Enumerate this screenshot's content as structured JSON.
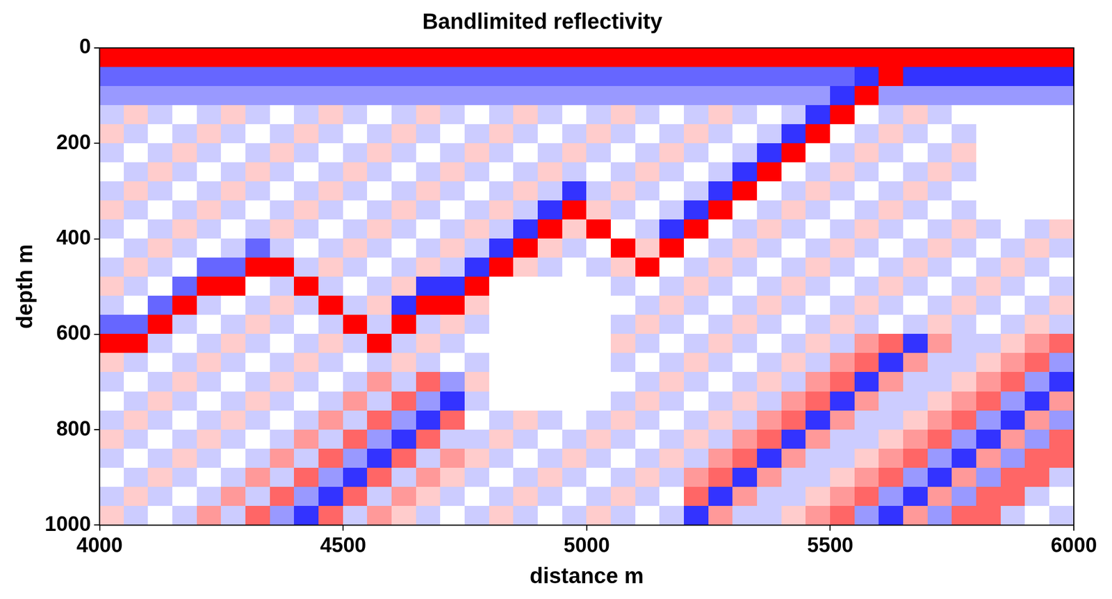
{
  "chart_data": {
    "type": "heatmap",
    "title": "Bandlimited reflectivity",
    "x_label": "distance m",
    "y_label": "depth m",
    "xlim": [
      4000,
      6000
    ],
    "ylim": [
      0,
      1000
    ],
    "xticks": [
      4000,
      4500,
      5000,
      5500,
      6000
    ],
    "yticks": [
      0,
      200,
      400,
      600,
      800,
      1000
    ],
    "grid": false,
    "x": [
      4025,
      4075,
      4125,
      4175,
      4225,
      4275,
      4325,
      4375,
      4425,
      4475,
      4525,
      4575,
      4625,
      4675,
      4725,
      4775,
      4825,
      4875,
      4925,
      4975,
      5025,
      5075,
      5125,
      5175,
      5225,
      5275,
      5325,
      5375,
      5425,
      5475,
      5525,
      5575,
      5625,
      5675,
      5725,
      5775,
      5825,
      5875,
      5925,
      5975
    ],
    "y": [
      20,
      60,
      100,
      140,
      180,
      220,
      260,
      300,
      340,
      380,
      420,
      460,
      500,
      540,
      580,
      620,
      660,
      700,
      740,
      780,
      820,
      860,
      900,
      940,
      980
    ],
    "cells": [
      [
        5,
        5,
        5,
        5,
        5,
        5,
        5,
        5,
        5,
        5,
        5,
        5,
        5,
        5,
        5,
        5,
        5,
        5,
        5,
        5,
        5,
        5,
        5,
        5,
        5,
        5,
        5,
        5,
        5,
        5,
        5,
        5,
        5,
        5,
        5,
        5,
        5,
        5,
        5,
        5
      ],
      [
        -3,
        -3,
        -3,
        -3,
        -3,
        -3,
        -3,
        -3,
        -3,
        -3,
        -3,
        -3,
        -3,
        -3,
        -3,
        -3,
        -3,
        -3,
        -3,
        -3,
        -3,
        -3,
        -3,
        -3,
        -3,
        -3,
        -3,
        -3,
        -3,
        -3,
        -3,
        -4,
        5,
        -4,
        -4,
        -4,
        -4,
        -4,
        -4,
        -4
      ],
      [
        -2,
        -2,
        -2,
        -2,
        -2,
        -2,
        -2,
        -2,
        -2,
        -2,
        -2,
        -2,
        -2,
        -2,
        -2,
        -2,
        -2,
        -2,
        -2,
        -2,
        -2,
        -2,
        -2,
        -2,
        -2,
        -2,
        -2,
        -2,
        -2,
        -2,
        -4,
        5,
        -2,
        -2,
        -2,
        -2,
        -2,
        -2,
        -2,
        -2
      ],
      [
        -1,
        1,
        -1,
        0,
        -1,
        1,
        -1,
        0,
        -1,
        1,
        -1,
        0,
        -1,
        1,
        -1,
        0,
        -1,
        1,
        -1,
        0,
        -1,
        1,
        -1,
        0,
        -1,
        1,
        -1,
        0,
        -1,
        -4,
        5,
        0,
        -1,
        1,
        -1,
        0,
        0,
        0,
        0,
        0
      ],
      [
        1,
        -1,
        0,
        -1,
        1,
        -1,
        0,
        -1,
        1,
        -1,
        0,
        -1,
        1,
        -1,
        0,
        -1,
        1,
        -1,
        0,
        -1,
        1,
        -1,
        0,
        -1,
        1,
        -1,
        0,
        -1,
        -4,
        5,
        0,
        -1,
        1,
        -1,
        0,
        -1,
        0,
        0,
        0,
        0
      ],
      [
        -1,
        0,
        -1,
        1,
        -1,
        0,
        -1,
        1,
        -1,
        0,
        -1,
        1,
        -1,
        0,
        -1,
        1,
        -1,
        0,
        -1,
        1,
        -1,
        0,
        -1,
        1,
        -1,
        0,
        -1,
        -4,
        5,
        0,
        -1,
        1,
        -1,
        0,
        -1,
        1,
        0,
        0,
        0,
        0
      ],
      [
        0,
        -1,
        1,
        -1,
        0,
        -1,
        1,
        -1,
        0,
        -1,
        1,
        -1,
        0,
        -1,
        1,
        -1,
        0,
        -1,
        1,
        -1,
        0,
        -1,
        1,
        -1,
        0,
        -1,
        -4,
        5,
        0,
        -1,
        1,
        -1,
        0,
        -1,
        1,
        -1,
        0,
        0,
        0,
        0
      ],
      [
        -1,
        1,
        -1,
        0,
        -1,
        1,
        -1,
        0,
        -1,
        1,
        -1,
        0,
        -1,
        1,
        -1,
        0,
        -1,
        1,
        -1,
        -4,
        -1,
        1,
        -1,
        0,
        -1,
        -4,
        5,
        0,
        -1,
        1,
        -1,
        0,
        -1,
        1,
        -1,
        0,
        0,
        0,
        0,
        0
      ],
      [
        1,
        -1,
        0,
        -1,
        1,
        -1,
        0,
        -1,
        1,
        -1,
        0,
        -1,
        1,
        -1,
        0,
        -1,
        1,
        -1,
        -4,
        5,
        1,
        -1,
        0,
        -1,
        -4,
        5,
        0,
        -1,
        1,
        -1,
        0,
        -1,
        1,
        -1,
        0,
        -1,
        0,
        0,
        0,
        0
      ],
      [
        -1,
        0,
        -1,
        1,
        -1,
        0,
        -1,
        1,
        -1,
        0,
        -1,
        1,
        -1,
        0,
        -1,
        1,
        -1,
        -4,
        5,
        1,
        5,
        0,
        -1,
        -4,
        5,
        0,
        -1,
        1,
        -1,
        0,
        -1,
        1,
        -1,
        0,
        -1,
        1,
        -1,
        0,
        -1,
        1
      ],
      [
        0,
        -1,
        1,
        -1,
        0,
        -1,
        -3,
        -1,
        0,
        -1,
        1,
        -1,
        0,
        -1,
        1,
        -1,
        -4,
        5,
        1,
        -1,
        0,
        5,
        1,
        5,
        0,
        -1,
        1,
        -1,
        0,
        -1,
        1,
        -1,
        0,
        -1,
        1,
        -1,
        0,
        -1,
        1,
        -1
      ],
      [
        -1,
        1,
        -1,
        0,
        -3,
        -3,
        5,
        5,
        -1,
        1,
        -1,
        0,
        -1,
        1,
        -1,
        -4,
        5,
        1,
        -1,
        0,
        -1,
        1,
        5,
        0,
        -1,
        1,
        -1,
        0,
        -1,
        1,
        -1,
        0,
        -1,
        1,
        -1,
        0,
        -1,
        1,
        -1,
        0
      ],
      [
        1,
        -1,
        0,
        -3,
        5,
        5,
        0,
        -1,
        5,
        -1,
        0,
        -1,
        1,
        -4,
        -4,
        5,
        0,
        0,
        0,
        0,
        0,
        -1,
        0,
        -1,
        1,
        -1,
        0,
        -1,
        1,
        -1,
        0,
        -1,
        1,
        -1,
        0,
        -1,
        1,
        -1,
        0,
        -1
      ],
      [
        -1,
        0,
        -3,
        5,
        -1,
        0,
        -1,
        1,
        -1,
        5,
        -1,
        1,
        -4,
        5,
        5,
        1,
        0,
        0,
        0,
        0,
        0,
        0,
        -1,
        1,
        -1,
        0,
        -1,
        1,
        -1,
        0,
        -1,
        1,
        -1,
        0,
        -1,
        1,
        -1,
        0,
        -1,
        1
      ],
      [
        -3,
        -3,
        5,
        -1,
        0,
        -1,
        1,
        -1,
        0,
        -1,
        5,
        -1,
        5,
        -1,
        1,
        -1,
        0,
        0,
        0,
        0,
        0,
        -1,
        1,
        -1,
        0,
        -1,
        1,
        -1,
        0,
        -1,
        1,
        -1,
        0,
        -1,
        1,
        -1,
        0,
        -1,
        1,
        -1
      ],
      [
        5,
        5,
        -1,
        0,
        -1,
        1,
        -1,
        0,
        -1,
        1,
        -1,
        5,
        -1,
        1,
        -1,
        0,
        0,
        0,
        0,
        0,
        0,
        1,
        -1,
        0,
        -1,
        1,
        -1,
        0,
        -1,
        1,
        -1,
        2,
        3,
        -4,
        2,
        -1,
        -1,
        1,
        2,
        3
      ],
      [
        1,
        -1,
        0,
        -1,
        1,
        -1,
        0,
        -1,
        1,
        -1,
        0,
        -1,
        1,
        -1,
        0,
        -1,
        0,
        0,
        0,
        0,
        0,
        -1,
        0,
        -1,
        1,
        -1,
        0,
        -1,
        1,
        -1,
        2,
        3,
        -4,
        2,
        -1,
        -1,
        1,
        2,
        3,
        -2
      ],
      [
        -1,
        0,
        -1,
        1,
        -1,
        0,
        -1,
        1,
        -1,
        0,
        -1,
        2,
        -1,
        3,
        -2,
        1,
        0,
        0,
        0,
        0,
        0,
        0,
        -1,
        1,
        -1,
        0,
        -1,
        1,
        -1,
        2,
        3,
        -4,
        2,
        -1,
        -1,
        1,
        2,
        3,
        -2,
        -4
      ],
      [
        0,
        -1,
        1,
        -1,
        0,
        -1,
        1,
        -1,
        0,
        -1,
        2,
        -1,
        3,
        -2,
        -4,
        -1,
        0,
        0,
        0,
        0,
        0,
        -1,
        1,
        -1,
        0,
        -1,
        1,
        -1,
        2,
        3,
        -4,
        2,
        -1,
        -1,
        1,
        2,
        3,
        -2,
        -4,
        2
      ],
      [
        -1,
        1,
        -1,
        0,
        -1,
        1,
        -1,
        0,
        -1,
        2,
        -1,
        3,
        -2,
        -4,
        3,
        0,
        -1,
        1,
        -1,
        0,
        -1,
        1,
        -1,
        0,
        -1,
        1,
        -1,
        2,
        3,
        -4,
        2,
        -1,
        -1,
        1,
        2,
        3,
        -2,
        -4,
        2,
        -2
      ],
      [
        1,
        -1,
        0,
        -1,
        1,
        -1,
        0,
        -1,
        2,
        -1,
        3,
        -2,
        -4,
        3,
        -1,
        -1,
        1,
        -1,
        0,
        -1,
        1,
        -1,
        0,
        -1,
        1,
        -1,
        2,
        3,
        -4,
        2,
        -1,
        -1,
        1,
        2,
        3,
        -2,
        -4,
        2,
        -2,
        3
      ],
      [
        -1,
        0,
        -1,
        1,
        -1,
        0,
        -1,
        2,
        -1,
        3,
        -2,
        -4,
        3,
        -1,
        2,
        1,
        -1,
        0,
        -1,
        1,
        -1,
        0,
        -1,
        1,
        -1,
        2,
        3,
        -4,
        2,
        -1,
        -1,
        1,
        2,
        3,
        -2,
        -4,
        2,
        -2,
        3,
        3
      ],
      [
        0,
        -1,
        1,
        -1,
        0,
        -1,
        2,
        -1,
        3,
        -2,
        -4,
        3,
        -1,
        2,
        1,
        -1,
        0,
        -1,
        1,
        -1,
        0,
        -1,
        1,
        -1,
        2,
        3,
        -4,
        2,
        -1,
        -1,
        1,
        2,
        3,
        -2,
        -4,
        2,
        -2,
        3,
        3,
        -1
      ],
      [
        -1,
        1,
        -1,
        0,
        -1,
        2,
        -1,
        3,
        -2,
        -4,
        3,
        -1,
        2,
        1,
        -1,
        0,
        -1,
        1,
        -1,
        0,
        -1,
        1,
        -1,
        0,
        3,
        -4,
        2,
        -1,
        -1,
        1,
        2,
        3,
        -2,
        -4,
        2,
        -2,
        3,
        3,
        -1,
        0
      ],
      [
        1,
        -1,
        0,
        -1,
        2,
        -1,
        3,
        -2,
        -4,
        3,
        -1,
        2,
        1,
        -1,
        0,
        -1,
        1,
        -1,
        0,
        -1,
        1,
        -1,
        0,
        -1,
        -4,
        2,
        -1,
        -1,
        1,
        2,
        3,
        -2,
        -4,
        2,
        -2,
        3,
        3,
        -1,
        0,
        -1
      ]
    ]
  }
}
